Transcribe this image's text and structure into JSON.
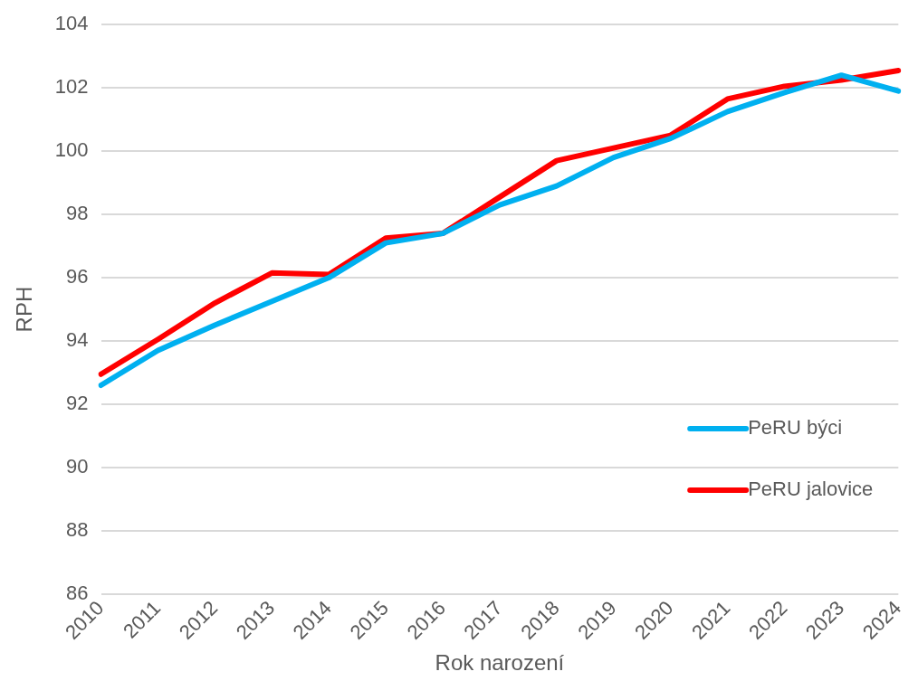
{
  "chart_data": {
    "type": "line",
    "xlabel": "Rok narození",
    "ylabel": "RPH",
    "categories": [
      "2010",
      "2011",
      "2012",
      "2013",
      "2014",
      "2015",
      "2016",
      "2017",
      "2018",
      "2019",
      "2020",
      "2021",
      "2022",
      "2023",
      "2024"
    ],
    "series": [
      {
        "name": "PeRU býci",
        "color": "#00b0f0",
        "values": [
          92.6,
          93.7,
          94.5,
          95.25,
          96.0,
          97.1,
          97.4,
          98.3,
          98.9,
          99.8,
          100.4,
          101.25,
          101.85,
          102.4,
          101.9
        ]
      },
      {
        "name": "PeRU jalovice",
        "color": "#ff0000",
        "values": [
          92.95,
          94.05,
          95.2,
          96.15,
          96.1,
          97.25,
          97.4,
          98.55,
          99.7,
          100.1,
          100.5,
          101.65,
          102.05,
          102.25,
          102.55
        ]
      }
    ],
    "ylim": [
      86,
      104
    ],
    "yticks": [
      86,
      88,
      90,
      92,
      94,
      96,
      98,
      100,
      102,
      104
    ],
    "grid": "y",
    "legend": "bottom right",
    "marker": "none",
    "line_style": "solid"
  }
}
